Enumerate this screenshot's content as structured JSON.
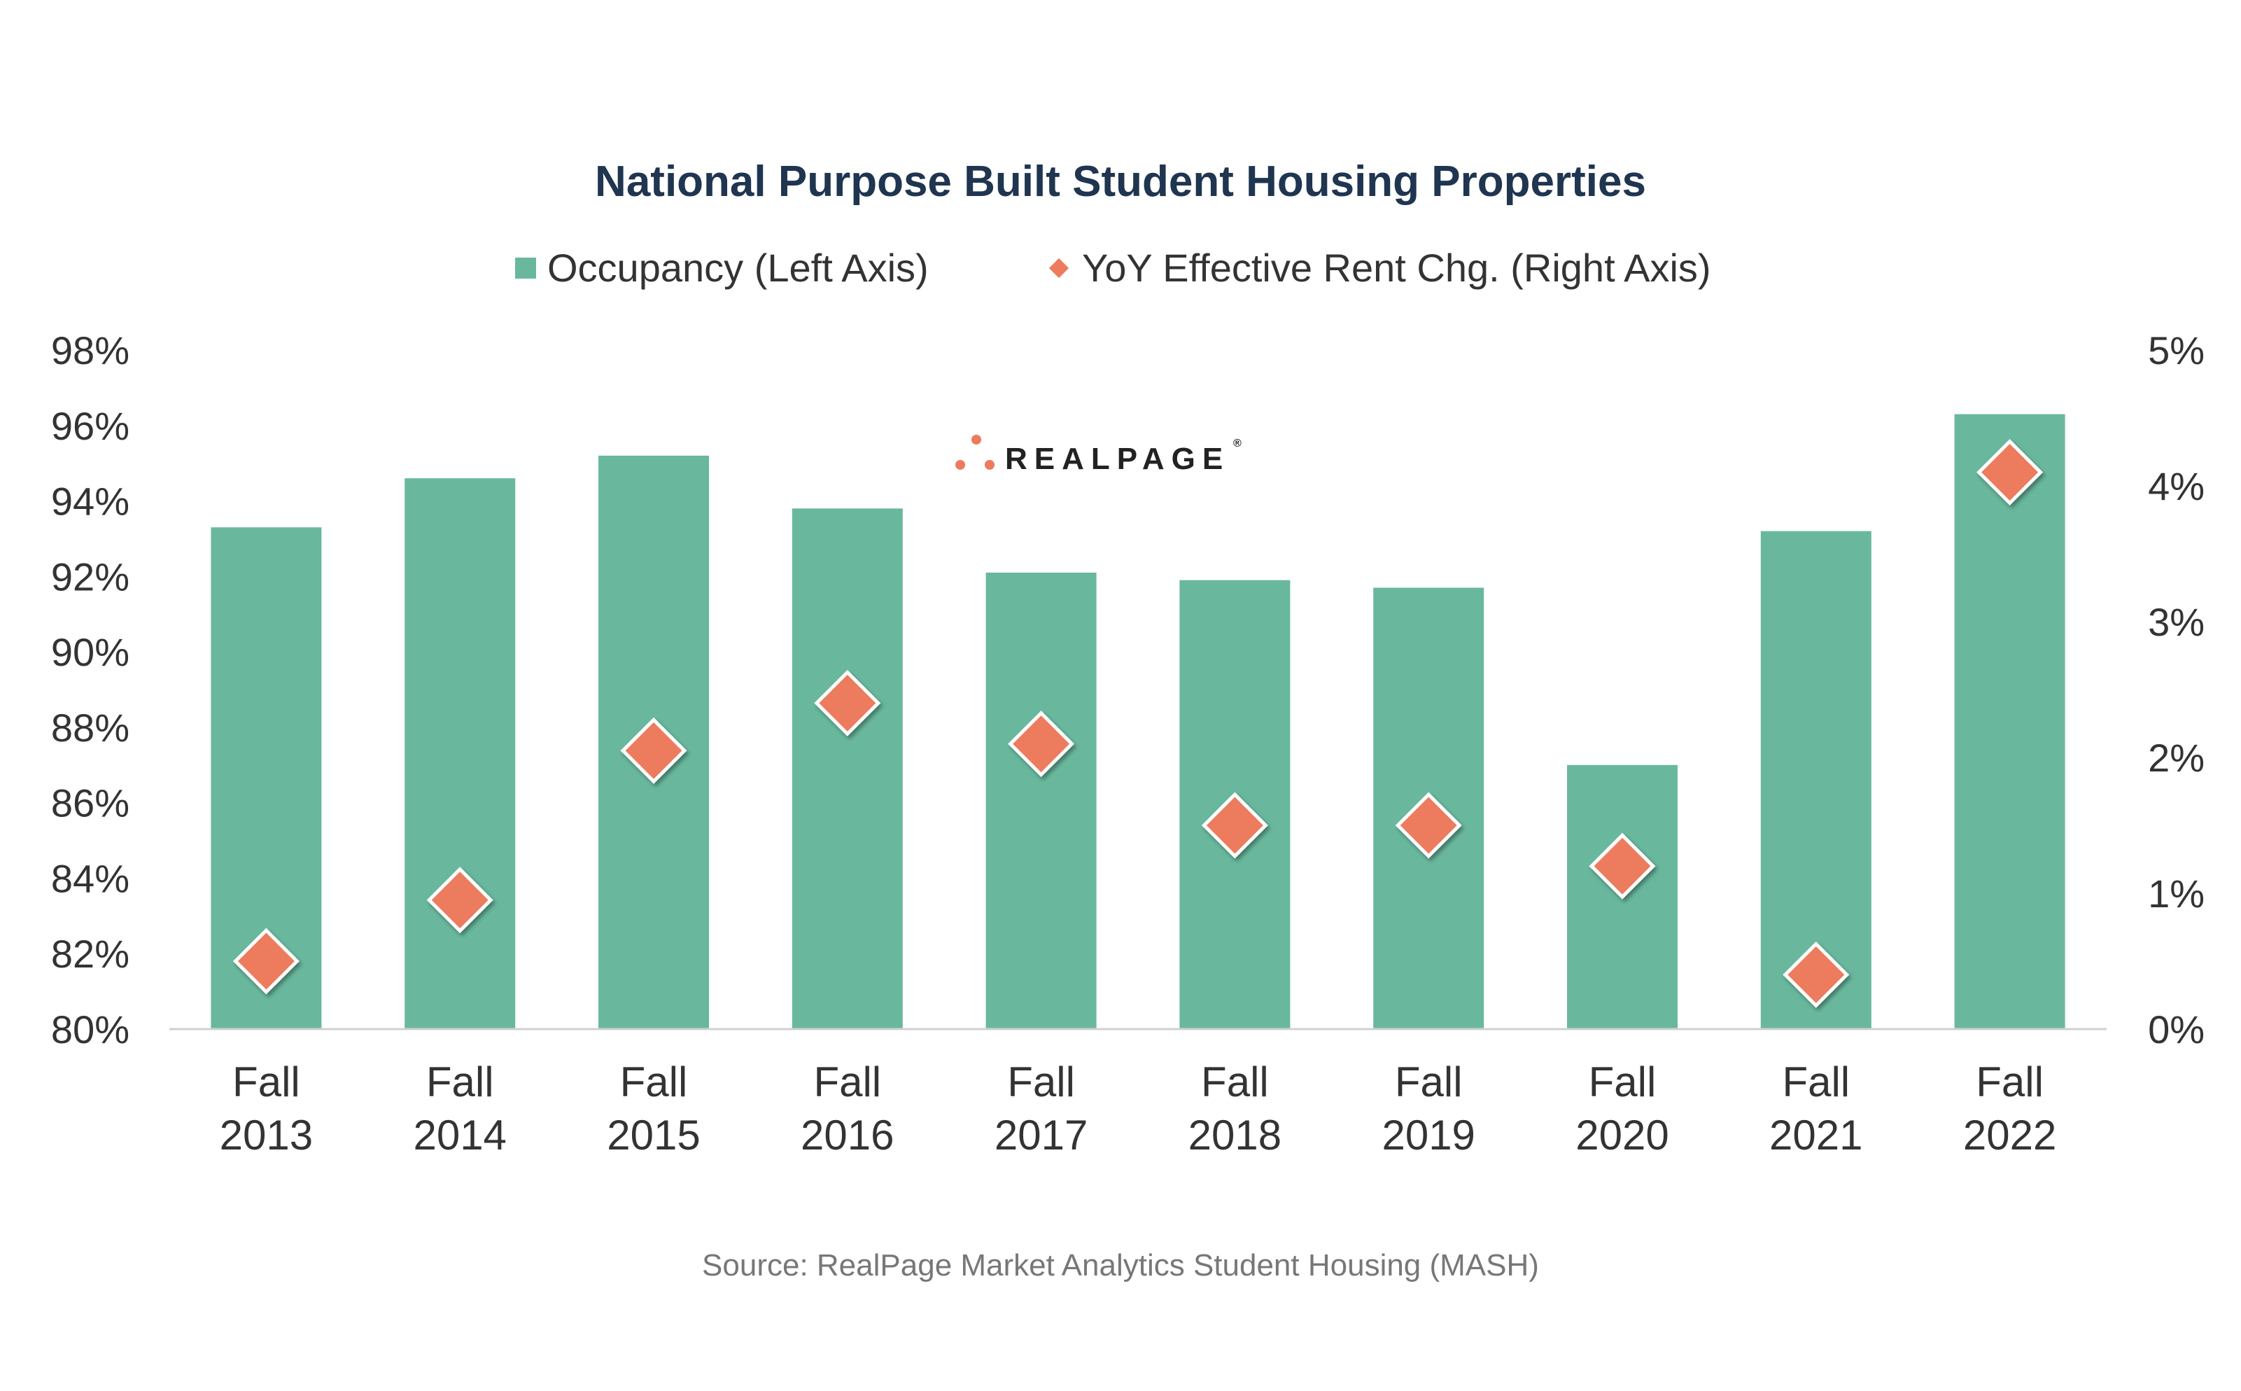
{
  "colors": {
    "bar": "#69b89e",
    "marker": "#ed7b5d",
    "marker_stroke": "#ffffff",
    "title": "#1f3550",
    "axis": "#d0d0d0",
    "logo_dot": "#ed7b5d"
  },
  "logo": {
    "text": "REALPAGE",
    "registered": "®"
  },
  "source": "Source: RealPage Market Analytics Student Housing (MASH)",
  "chart_data": {
    "type": "bar",
    "title": "National Purpose Built Student Housing Properties",
    "legend": [
      {
        "label": "Occupancy (Left Axis)",
        "marker": "square"
      },
      {
        "label": "YoY Effective Rent Chg. (Right Axis)",
        "marker": "diamond"
      }
    ],
    "legend_position": "top-center",
    "categories": [
      [
        "Fall",
        "2013"
      ],
      [
        "Fall",
        "2014"
      ],
      [
        "Fall",
        "2015"
      ],
      [
        "Fall",
        "2016"
      ],
      [
        "Fall",
        "2017"
      ],
      [
        "Fall",
        "2018"
      ],
      [
        "Fall",
        "2019"
      ],
      [
        "Fall",
        "2020"
      ],
      [
        "Fall",
        "2021"
      ],
      [
        "Fall",
        "2022"
      ]
    ],
    "series": [
      {
        "name": "Occupancy (Left Axis)",
        "type": "bar",
        "axis": "left",
        "values": [
          93.3,
          94.6,
          95.2,
          93.8,
          92.1,
          91.9,
          91.7,
          87.0,
          93.2,
          96.3
        ]
      },
      {
        "name": "YoY Effective Rent Chg. (Right Axis)",
        "type": "scatter",
        "axis": "right",
        "values": [
          0.5,
          0.95,
          2.05,
          2.4,
          2.1,
          1.5,
          1.5,
          1.2,
          0.4,
          4.1
        ]
      }
    ],
    "left_axis": {
      "min": 80,
      "max": 98,
      "step": 2,
      "tick_labels": [
        "80%",
        "82%",
        "84%",
        "86%",
        "88%",
        "90%",
        "92%",
        "94%",
        "96%",
        "98%"
      ]
    },
    "right_axis": {
      "min": 0,
      "max": 5,
      "step": 1,
      "tick_labels": [
        "0%",
        "1%",
        "2%",
        "3%",
        "4%",
        "5%"
      ]
    },
    "grid": false
  }
}
